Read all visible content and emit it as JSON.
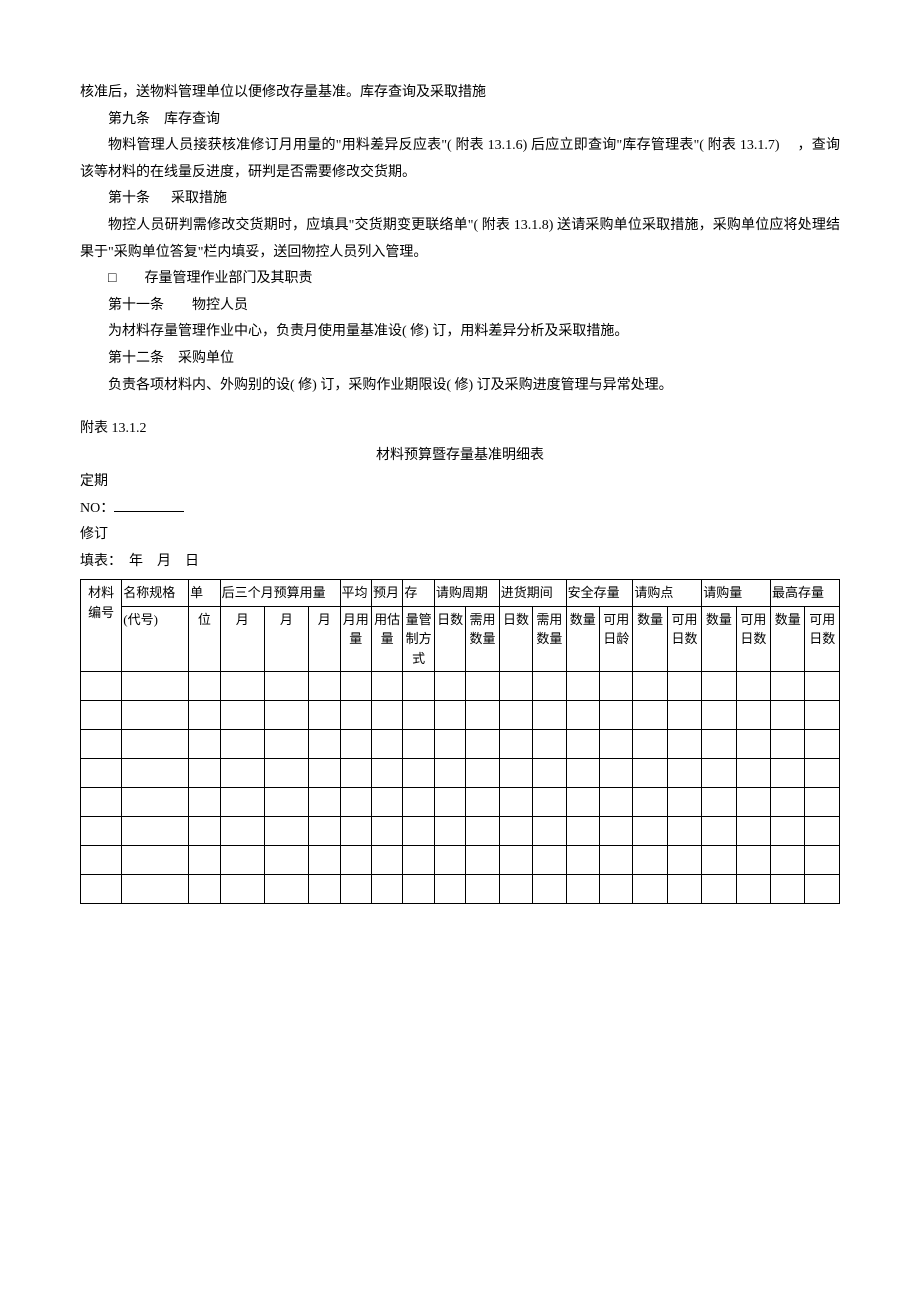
{
  "para1": "核准后，送物料管理单位以便修改存量基准。库存查询及采取措施",
  "art9_title": "第九条　库存查询",
  "art9_body": "物料管理人员接获核准修订月用量的\"用料差异反应表\"( 附表 13.1.6) 后应立即查询\"库存管理表\"( 附表 13.1.7) 　，查询该等材料的在线量反进度，研判是否需要修改交货期。",
  "art10_title": "第十条 　 采取措施",
  "art10_body": "物控人员研判需修改交货期时，应填具\"交货期变更联络单\"( 附表 13.1.8) 送请采购单位采取措施，采购单位应将处理结果于\"采购单位答复\"栏内填妥，送回物控人员列入管理。",
  "sec_title": "□　　存量管理作业部门及其职责",
  "art11_title": "第十一条　　物控人员",
  "art11_body": "为材料存量管理作业中心，负责月使用量基准设( 修) 订，用料差异分析及采取措施。",
  "art12_title": "第十二条　采购单位",
  "art12_body": "负责各项材料内、外购别的设( 修) 订，采购作业期限设( 修) 订及采购进度管理与异常处理。",
  "attach_label": "附表 13.1.2",
  "table_title": "材料预算暨存量基准明细表",
  "meta_dingqi": "定期",
  "meta_no_label": "NO：",
  "meta_xiuding": "修订",
  "meta_date": "填表：　年　月　日",
  "col": {
    "c0": "材料编号",
    "c1_top": "名称规格",
    "c1_sub": "(代号)",
    "c2_top": "单",
    "c2_sub": "位",
    "c3_group": "后三个月预算用量",
    "c3a": "月",
    "c3b": "月",
    "c3c": "月",
    "c4_top": "平均",
    "c4_sub": "月用量",
    "c5_top": "预月",
    "c5_sub": "用估量",
    "c6_top": "存",
    "c6_sub": "量管制方式",
    "c7_group": "请购周期",
    "c7a": "日数",
    "c7b": "需用数量",
    "c8_group": "进货期间",
    "c8a": "日数",
    "c8b": "需用数量",
    "c9_group": "安全存量",
    "c9a": "数量",
    "c9b": "可用日龄",
    "c10_group": "请购点",
    "c10a": "数量",
    "c10b": "可用日数",
    "c11_group": "请购量",
    "c11a": "数量",
    "c11b": "可用日数",
    "c12_group": "最高存量",
    "c12a": "数量",
    "c12b": "可用日数"
  },
  "empty_row_count": 8,
  "colors": {
    "text": "#000000",
    "bg": "#ffffff",
    "border": "#000000"
  },
  "font_size_body": 14,
  "font_size_table": 13
}
